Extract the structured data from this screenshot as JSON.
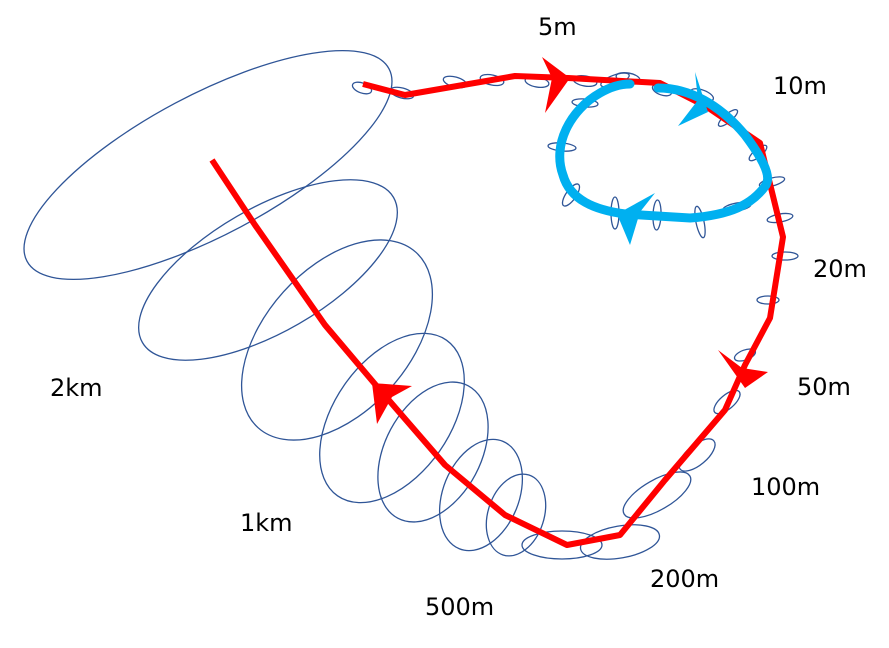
{
  "colors": {
    "red_path": "#ff0000",
    "blue_loop": "#00b0f0",
    "ellipse": "#2f5597"
  },
  "labels": {
    "h5m": "5m",
    "h10m": "10m",
    "h20m": "20m",
    "h50m": "50m",
    "h100m": "100m",
    "h200m": "200m",
    "h500m": "500m",
    "h1km": "1km",
    "h2km": "2km"
  }
}
